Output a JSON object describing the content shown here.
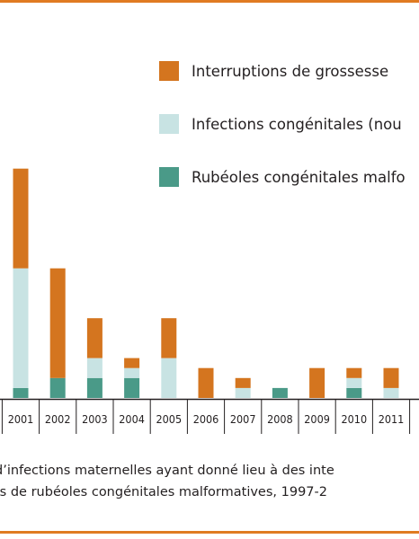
{
  "colors": {
    "rule": "#e07b22",
    "interruptions": "#d4751f",
    "infections": "#c8e3e3",
    "rubeoles": "#4a9a88"
  },
  "chart_data": {
    "type": "bar",
    "stacked": true,
    "categories": [
      "2001",
      "2002",
      "2003",
      "2004",
      "2005",
      "2006",
      "2007",
      "2008",
      "2009",
      "2010",
      "2011"
    ],
    "series": [
      {
        "name": "Rubéoles congénitales malformatives",
        "values": [
          1,
          2,
          2,
          2,
          0,
          0,
          0,
          1,
          0,
          1,
          0
        ]
      },
      {
        "name": "Infections congénitales (nouveau-nés)",
        "values": [
          12,
          0,
          2,
          1,
          4,
          0,
          1,
          0,
          0,
          1,
          1
        ]
      },
      {
        "name": "Interruptions de grossesse",
        "values": [
          10,
          11,
          4,
          1,
          4,
          3,
          1,
          0,
          3,
          1,
          2
        ]
      }
    ],
    "legend": "top-right",
    "legend_labels": [
      "Interruptions de grossesse",
      "Infections congénitales (nou",
      "Rubéoles congénitales malfo"
    ],
    "ylim": [
      0,
      23
    ],
    "grid": false
  },
  "caption": {
    "line1": "d’infections maternelles ayant donné lieu à des inte",
    "line2": "ts de rubéoles congénitales malformatives, 1997-2"
  }
}
